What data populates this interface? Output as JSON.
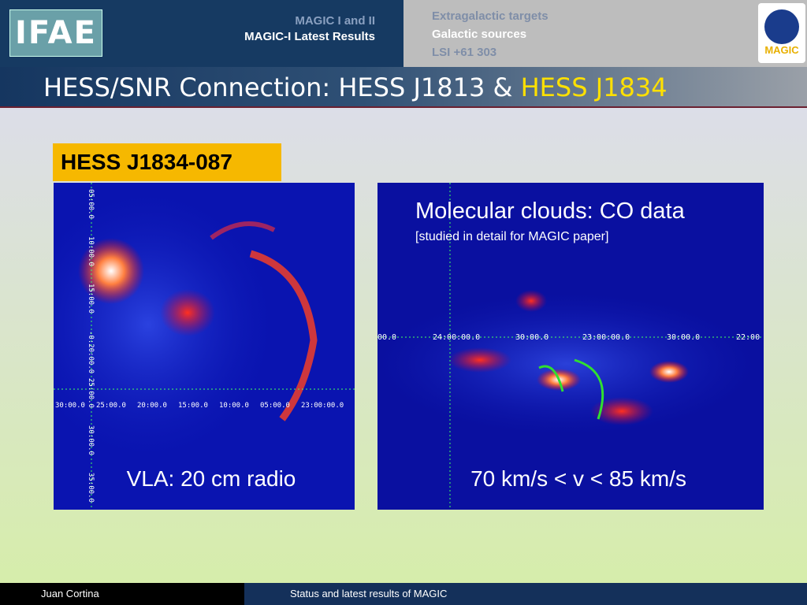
{
  "header": {
    "logo_left": "IFAE",
    "section": "MAGIC I and II",
    "subsection": "MAGIC-I Latest Results",
    "nav": [
      "Extragalactic targets",
      "Galactic sources",
      "LSI +61 303"
    ],
    "logo_right": "MAGIC"
  },
  "title": {
    "main": "HESS/SNR Connection: HESS J1813 & ",
    "highlight": "HESS J1834"
  },
  "label": "HESS J1834-087",
  "left_image": {
    "caption": "VLA: 20 cm radio",
    "x_labels": [
      "30:00.0",
      "25:00.0",
      "20:00.0",
      "15:00.0",
      "10:00.0",
      "05:00.0",
      "23:00:00.0"
    ],
    "y_labels": [
      "05:00.0",
      "10:00.0",
      "15:00.0",
      "-0:20:00.0",
      "25:00.0",
      "30:00.0",
      "35:00.0"
    ]
  },
  "right_image": {
    "heading": "Molecular clouds: CO data",
    "note": "[studied in detail for MAGIC paper]",
    "caption": "70 km/s < v < 85 km/s",
    "x_labels": [
      "00.0",
      "24:00:00.0",
      "30:00.0",
      "23:00:00.0",
      "30:00.0",
      "22:00"
    ]
  },
  "footer": {
    "author": "Juan Cortina",
    "subject": "Status and latest results of MAGIC"
  }
}
